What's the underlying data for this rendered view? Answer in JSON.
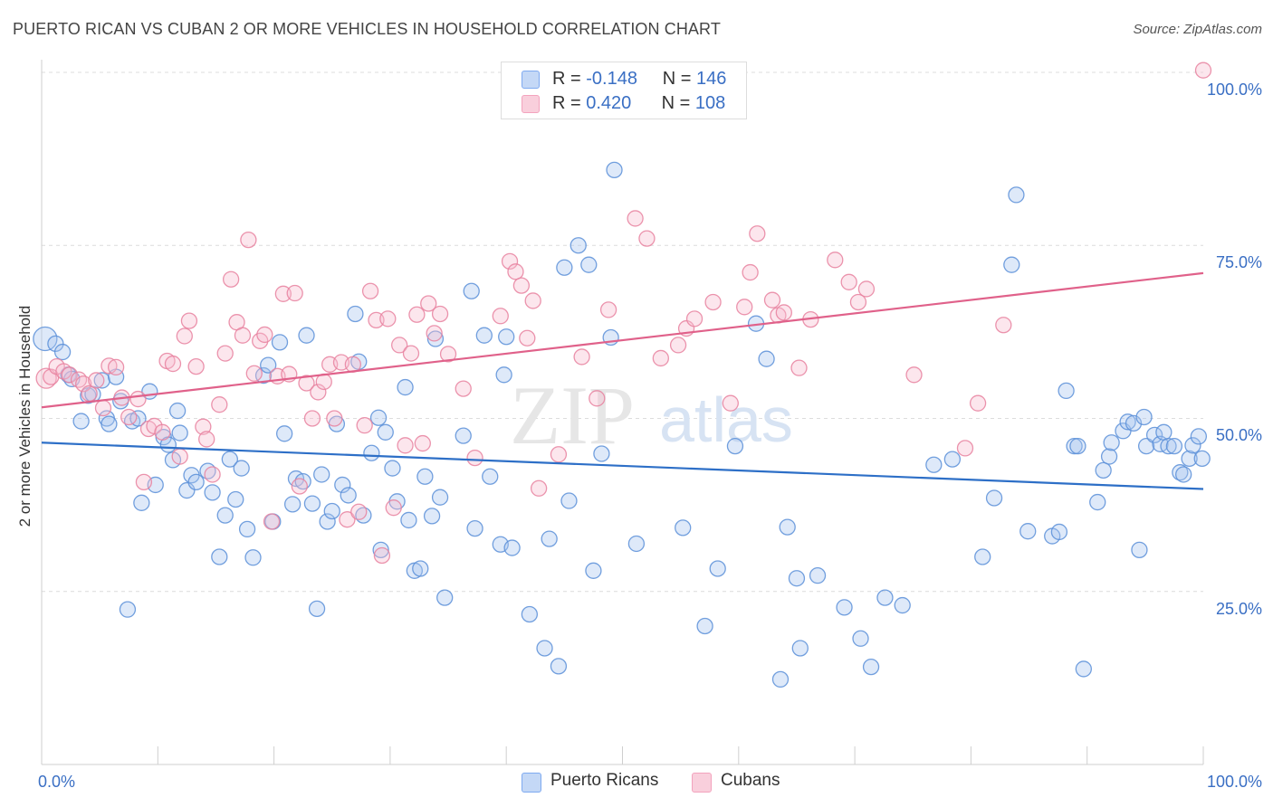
{
  "header": {
    "title": "PUERTO RICAN VS CUBAN 2 OR MORE VEHICLES IN HOUSEHOLD CORRELATION CHART",
    "source": "Source: ZipAtlas.com"
  },
  "watermark": {
    "zip": "ZIP",
    "atlas": "atlas"
  },
  "legend": {
    "rows": [
      {
        "r_label": "R =",
        "r_value": "-0.148",
        "n_label": "N =",
        "n_value": "146",
        "color": "#7eaaf0"
      },
      {
        "r_label": "R =",
        "r_value": "0.420",
        "n_label": "N =",
        "n_value": "108",
        "color": "#f3a3bd"
      }
    ]
  },
  "bottom_legend": {
    "puerto_ricans": "Puerto Ricans",
    "cubans": "Cubans"
  },
  "chart_data": {
    "type": "scatter",
    "title": "PUERTO RICAN VS CUBAN 2 OR MORE VEHICLES IN HOUSEHOLD CORRELATION CHART",
    "xlabel": "",
    "ylabel": "2 or more Vehicles in Household",
    "xlim": [
      0,
      100
    ],
    "ylim": [
      0,
      100
    ],
    "x_tick_labels": [
      "0.0%",
      "100.0%"
    ],
    "y_tick_labels": [
      "25.0%",
      "50.0%",
      "75.0%",
      "100.0%"
    ],
    "y_ticks": [
      25,
      50,
      75,
      100
    ],
    "grid": true,
    "legend_position": "top-center",
    "series": [
      {
        "name": "Puerto Ricans",
        "color": "#5b8fd8",
        "fill": "#a9c5f0",
        "trend": [
          [
            0,
            46.5
          ],
          [
            100,
            39.8
          ]
        ],
        "points": [
          [
            0.3,
            61.5
          ],
          [
            1.2,
            60.8
          ],
          [
            1.8,
            59.6
          ],
          [
            2.3,
            56.3
          ],
          [
            2.6,
            55.7
          ],
          [
            3.4,
            49.6
          ],
          [
            4.0,
            53.3
          ],
          [
            4.4,
            53.5
          ],
          [
            5.2,
            55.5
          ],
          [
            5.6,
            50.0
          ],
          [
            5.8,
            49.2
          ],
          [
            6.4,
            56.0
          ],
          [
            6.8,
            52.5
          ],
          [
            7.4,
            22.4
          ],
          [
            7.8,
            49.6
          ],
          [
            8.3,
            50.0
          ],
          [
            8.6,
            37.8
          ],
          [
            9.3,
            53.9
          ],
          [
            9.8,
            40.4
          ],
          [
            10.5,
            47.3
          ],
          [
            10.9,
            46.2
          ],
          [
            11.3,
            44.0
          ],
          [
            11.7,
            51.1
          ],
          [
            11.9,
            47.9
          ],
          [
            12.5,
            39.6
          ],
          [
            12.9,
            41.8
          ],
          [
            13.3,
            40.8
          ],
          [
            14.3,
            42.4
          ],
          [
            14.7,
            39.3
          ],
          [
            15.3,
            30.0
          ],
          [
            15.8,
            36.0
          ],
          [
            16.2,
            44.1
          ],
          [
            16.7,
            38.3
          ],
          [
            17.2,
            42.8
          ],
          [
            17.7,
            34.0
          ],
          [
            18.2,
            29.9
          ],
          [
            19.1,
            56.2
          ],
          [
            19.5,
            57.7
          ],
          [
            19.9,
            35.1
          ],
          [
            20.5,
            61.0
          ],
          [
            20.9,
            47.8
          ],
          [
            21.6,
            37.6
          ],
          [
            21.9,
            41.3
          ],
          [
            22.5,
            40.9
          ],
          [
            22.8,
            62.0
          ],
          [
            23.3,
            37.7
          ],
          [
            23.7,
            22.5
          ],
          [
            24.1,
            41.9
          ],
          [
            24.6,
            35.1
          ],
          [
            25.0,
            36.6
          ],
          [
            25.4,
            49.2
          ],
          [
            25.9,
            40.4
          ],
          [
            26.4,
            38.9
          ],
          [
            27.0,
            65.1
          ],
          [
            27.3,
            58.2
          ],
          [
            27.7,
            36.0
          ],
          [
            28.4,
            45.0
          ],
          [
            29.0,
            50.1
          ],
          [
            29.2,
            31.0
          ],
          [
            29.6,
            48.0
          ],
          [
            30.2,
            42.8
          ],
          [
            30.6,
            38.0
          ],
          [
            31.3,
            54.5
          ],
          [
            31.6,
            35.3
          ],
          [
            32.1,
            28.0
          ],
          [
            32.6,
            28.3
          ],
          [
            33.0,
            41.6
          ],
          [
            33.6,
            35.9
          ],
          [
            33.9,
            61.5
          ],
          [
            34.3,
            38.6
          ],
          [
            34.7,
            24.1
          ],
          [
            36.3,
            47.5
          ],
          [
            37.0,
            68.4
          ],
          [
            37.3,
            34.1
          ],
          [
            38.1,
            62.0
          ],
          [
            38.6,
            41.6
          ],
          [
            39.5,
            31.8
          ],
          [
            39.8,
            56.3
          ],
          [
            40.0,
            61.8
          ],
          [
            40.5,
            31.3
          ],
          [
            42.0,
            21.7
          ],
          [
            43.3,
            16.8
          ],
          [
            43.7,
            32.6
          ],
          [
            44.5,
            14.2
          ],
          [
            45.0,
            71.8
          ],
          [
            45.4,
            38.1
          ],
          [
            46.2,
            75.0
          ],
          [
            47.1,
            72.2
          ],
          [
            47.5,
            28.0
          ],
          [
            48.2,
            44.9
          ],
          [
            49.0,
            61.7
          ],
          [
            49.3,
            85.9
          ],
          [
            51.2,
            31.9
          ],
          [
            55.2,
            34.2
          ],
          [
            57.1,
            20.0
          ],
          [
            58.2,
            28.3
          ],
          [
            59.7,
            46.0
          ],
          [
            61.5,
            63.7
          ],
          [
            62.4,
            58.6
          ],
          [
            63.6,
            12.3
          ],
          [
            64.2,
            34.3
          ],
          [
            65.0,
            26.9
          ],
          [
            65.3,
            16.8
          ],
          [
            66.8,
            27.3
          ],
          [
            69.1,
            22.7
          ],
          [
            70.5,
            18.2
          ],
          [
            71.4,
            14.1
          ],
          [
            72.6,
            24.1
          ],
          [
            74.1,
            23.0
          ],
          [
            76.8,
            43.3
          ],
          [
            78.4,
            44.1
          ],
          [
            81.0,
            30.0
          ],
          [
            82.0,
            38.5
          ],
          [
            83.5,
            72.2
          ],
          [
            83.9,
            82.3
          ],
          [
            84.9,
            33.7
          ],
          [
            87.0,
            33.0
          ],
          [
            87.6,
            33.6
          ],
          [
            88.2,
            54.0
          ],
          [
            88.9,
            46.0
          ],
          [
            89.2,
            46.0
          ],
          [
            89.7,
            13.8
          ],
          [
            90.9,
            37.9
          ],
          [
            91.4,
            42.5
          ],
          [
            91.9,
            44.5
          ],
          [
            92.1,
            46.5
          ],
          [
            93.1,
            48.2
          ],
          [
            93.5,
            49.5
          ],
          [
            94.0,
            49.3
          ],
          [
            94.5,
            31.0
          ],
          [
            94.9,
            50.2
          ],
          [
            95.1,
            46.0
          ],
          [
            95.8,
            47.6
          ],
          [
            96.3,
            46.3
          ],
          [
            96.6,
            48.0
          ],
          [
            97.0,
            46.0
          ],
          [
            97.5,
            46.0
          ],
          [
            98.0,
            42.2
          ],
          [
            98.3,
            41.9
          ],
          [
            98.8,
            44.2
          ],
          [
            99.1,
            46.1
          ],
          [
            99.6,
            47.4
          ],
          [
            99.9,
            44.2
          ]
        ]
      },
      {
        "name": "Cubans",
        "color": "#e8819f",
        "fill": "#f6bcd0",
        "trend": [
          [
            0,
            51.6
          ],
          [
            100,
            71.0
          ]
        ],
        "points": [
          [
            0.4,
            55.8
          ],
          [
            0.8,
            56.0
          ],
          [
            1.3,
            57.5
          ],
          [
            1.9,
            56.8
          ],
          [
            2.4,
            56.3
          ],
          [
            3.2,
            55.6
          ],
          [
            3.6,
            55.0
          ],
          [
            4.1,
            53.6
          ],
          [
            4.7,
            55.5
          ],
          [
            5.3,
            51.5
          ],
          [
            5.8,
            57.6
          ],
          [
            6.4,
            57.4
          ],
          [
            6.9,
            53.0
          ],
          [
            7.5,
            50.2
          ],
          [
            8.3,
            52.8
          ],
          [
            8.8,
            40.8
          ],
          [
            9.2,
            48.5
          ],
          [
            9.7,
            48.9
          ],
          [
            10.4,
            48.0
          ],
          [
            10.8,
            58.3
          ],
          [
            11.3,
            57.9
          ],
          [
            11.9,
            44.5
          ],
          [
            12.3,
            61.9
          ],
          [
            12.7,
            64.1
          ],
          [
            13.3,
            57.5
          ],
          [
            13.9,
            48.8
          ],
          [
            14.2,
            47.0
          ],
          [
            14.7,
            41.9
          ],
          [
            15.3,
            52.0
          ],
          [
            15.8,
            59.4
          ],
          [
            16.3,
            70.1
          ],
          [
            16.8,
            63.9
          ],
          [
            17.3,
            62.0
          ],
          [
            17.8,
            75.8
          ],
          [
            18.3,
            56.5
          ],
          [
            18.8,
            61.2
          ],
          [
            19.2,
            62.1
          ],
          [
            19.8,
            35.1
          ],
          [
            20.3,
            56.1
          ],
          [
            20.8,
            68.0
          ],
          [
            21.3,
            56.4
          ],
          [
            21.8,
            68.1
          ],
          [
            22.2,
            40.2
          ],
          [
            22.8,
            55.1
          ],
          [
            23.3,
            50.0
          ],
          [
            23.8,
            53.8
          ],
          [
            24.3,
            55.3
          ],
          [
            24.8,
            57.8
          ],
          [
            25.2,
            50.0
          ],
          [
            25.8,
            58.1
          ],
          [
            26.3,
            35.4
          ],
          [
            26.8,
            57.8
          ],
          [
            27.3,
            36.5
          ],
          [
            27.8,
            49.0
          ],
          [
            28.3,
            68.4
          ],
          [
            28.8,
            64.2
          ],
          [
            29.3,
            30.2
          ],
          [
            29.8,
            64.4
          ],
          [
            30.3,
            37.1
          ],
          [
            30.8,
            60.6
          ],
          [
            31.3,
            46.1
          ],
          [
            31.8,
            59.4
          ],
          [
            32.3,
            65.0
          ],
          [
            32.8,
            46.4
          ],
          [
            33.3,
            66.6
          ],
          [
            33.8,
            62.3
          ],
          [
            34.3,
            65.1
          ],
          [
            35.0,
            59.3
          ],
          [
            36.3,
            54.3
          ],
          [
            37.3,
            44.3
          ],
          [
            39.5,
            64.8
          ],
          [
            40.3,
            72.7
          ],
          [
            40.8,
            71.2
          ],
          [
            41.3,
            69.2
          ],
          [
            41.8,
            61.6
          ],
          [
            42.3,
            67.0
          ],
          [
            42.8,
            39.9
          ],
          [
            44.5,
            44.8
          ],
          [
            46.5,
            58.9
          ],
          [
            47.8,
            52.9
          ],
          [
            48.8,
            65.7
          ],
          [
            51.1,
            78.9
          ],
          [
            52.1,
            76.0
          ],
          [
            53.3,
            58.7
          ],
          [
            54.8,
            60.6
          ],
          [
            55.5,
            63.0
          ],
          [
            56.2,
            64.4
          ],
          [
            57.8,
            66.8
          ],
          [
            59.3,
            52.2
          ],
          [
            60.5,
            66.1
          ],
          [
            61.0,
            71.1
          ],
          [
            61.6,
            76.7
          ],
          [
            62.9,
            67.1
          ],
          [
            63.4,
            64.9
          ],
          [
            63.9,
            65.3
          ],
          [
            65.2,
            57.3
          ],
          [
            66.2,
            64.3
          ],
          [
            68.3,
            72.9
          ],
          [
            69.5,
            69.7
          ],
          [
            70.3,
            66.8
          ],
          [
            71.0,
            68.7
          ],
          [
            75.1,
            56.3
          ],
          [
            79.5,
            45.7
          ],
          [
            80.6,
            52.2
          ],
          [
            82.8,
            63.5
          ],
          [
            100.0,
            100.3
          ]
        ]
      }
    ]
  }
}
